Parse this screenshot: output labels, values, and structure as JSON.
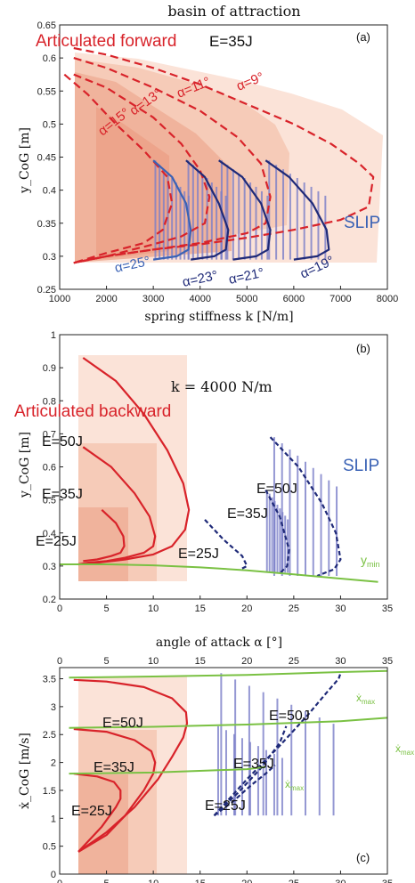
{
  "chart_data": [
    {
      "panel": "a",
      "type": "line",
      "title": "basin of attraction",
      "panel_label": "(a)",
      "xlabel": "spring stiffness k [N/m]",
      "ylabel": "y_CoG [m]",
      "xlim": [
        1000,
        8000
      ],
      "ylim": [
        0.25,
        0.65
      ],
      "xticks": [
        "1000",
        "2000",
        "3000",
        "4000",
        "5000",
        "6000",
        "7000",
        "8000"
      ],
      "yticks": [
        "0.25",
        "0.3",
        "0.35",
        "0.4",
        "0.45",
        "0.5",
        "0.55",
        "0.6",
        "0.65"
      ],
      "annotations": {
        "model_left": "Articulated forward",
        "energy": "E=35J",
        "model_right": "SLIP"
      },
      "colors": {
        "articulated": "#d8232a",
        "articulated_fill": "#f7c9b8",
        "slip_dark": "#1f2a78",
        "slip_light": "#3a62b5",
        "slip_hatch": "#7b7fc9"
      },
      "series": [
        {
          "name": "α=9°",
          "group": "articulated",
          "x": [
            1300,
            2000,
            3000,
            4000,
            5000,
            6000,
            6800,
            7400,
            7700,
            7600,
            7000,
            6000,
            5000,
            4000,
            3000,
            2000,
            1300
          ],
          "y": [
            0.615,
            0.605,
            0.585,
            0.56,
            0.53,
            0.5,
            0.47,
            0.44,
            0.42,
            0.375,
            0.355,
            0.34,
            0.328,
            0.318,
            0.31,
            0.3,
            0.29
          ]
        },
        {
          "name": "α=11°",
          "group": "articulated",
          "x": [
            1300,
            2000,
            3000,
            4000,
            4800,
            5300,
            5500,
            5400,
            5000,
            4000,
            3000,
            2000,
            1300
          ],
          "y": [
            0.6,
            0.585,
            0.555,
            0.52,
            0.48,
            0.44,
            0.39,
            0.35,
            0.335,
            0.32,
            0.31,
            0.3,
            0.29
          ]
        },
        {
          "name": "α=13°",
          "group": "articulated",
          "x": [
            1300,
            2000,
            3000,
            3600,
            4000,
            4200,
            4100,
            3600,
            3000,
            2000,
            1300
          ],
          "y": [
            0.575,
            0.555,
            0.51,
            0.47,
            0.43,
            0.39,
            0.35,
            0.33,
            0.318,
            0.3,
            0.29
          ]
        },
        {
          "name": "α=15°",
          "group": "articulated",
          "x": [
            1100,
            1600,
            2200,
            2800,
            3300,
            3400,
            3200,
            2800,
            2000,
            1300
          ],
          "y": [
            0.575,
            0.545,
            0.5,
            0.46,
            0.42,
            0.38,
            0.34,
            0.32,
            0.305,
            0.29
          ]
        },
        {
          "name": "α=25°",
          "group": "slip",
          "x": [
            3000,
            3400,
            3700,
            3800,
            3750,
            3500,
            3000
          ],
          "y": [
            0.445,
            0.42,
            0.38,
            0.34,
            0.31,
            0.3,
            0.295
          ]
        },
        {
          "name": "α=23°",
          "group": "slip",
          "x": [
            3700,
            4100,
            4400,
            4600,
            4550,
            4300,
            3800
          ],
          "y": [
            0.445,
            0.42,
            0.38,
            0.34,
            0.31,
            0.3,
            0.295
          ]
        },
        {
          "name": "α=21°",
          "group": "slip",
          "x": [
            4400,
            4900,
            5300,
            5500,
            5450,
            5200,
            4700
          ],
          "y": [
            0.445,
            0.42,
            0.38,
            0.34,
            0.31,
            0.3,
            0.295
          ]
        },
        {
          "name": "α=19°",
          "group": "slip",
          "x": [
            5400,
            5900,
            6400,
            6700,
            6750,
            6500,
            6000
          ],
          "y": [
            0.445,
            0.42,
            0.38,
            0.34,
            0.31,
            0.3,
            0.295
          ]
        }
      ]
    },
    {
      "panel": "b",
      "type": "line",
      "panel_label": "(b)",
      "xlabel": "angle of attack α [°]",
      "ylabel": "y_CoG [m]",
      "xlim": [
        0,
        35
      ],
      "ylim": [
        0.2,
        1.0
      ],
      "xticks": [
        "0",
        "5",
        "10",
        "15",
        "20",
        "25",
        "30",
        "35"
      ],
      "yticks": [
        "0.2",
        "0.3",
        "0.4",
        "0.5",
        "0.6",
        "0.7",
        "0.8",
        "0.9",
        "1"
      ],
      "annotations": {
        "condition": "k = 4000 N/m",
        "model_left": "Articulated backward",
        "model_right": "SLIP",
        "ymin_label": "y",
        "ymin_sub": "min"
      },
      "series": [
        {
          "name": "E=50J",
          "group": "articulated",
          "x": [
            2.5,
            6,
            9,
            11.5,
            13.2,
            13.8,
            13.4,
            12,
            10,
            7,
            4,
            2
          ],
          "y": [
            0.93,
            0.86,
            0.76,
            0.65,
            0.55,
            0.47,
            0.41,
            0.36,
            0.335,
            0.32,
            0.31,
            0.305
          ]
        },
        {
          "name": "E=35J",
          "group": "articulated",
          "x": [
            2.5,
            5.5,
            8,
            9.6,
            10.2,
            10,
            9,
            7,
            5,
            3,
            2
          ],
          "y": [
            0.66,
            0.6,
            0.52,
            0.45,
            0.39,
            0.36,
            0.34,
            0.325,
            0.315,
            0.31,
            0.305
          ]
        },
        {
          "name": "E=25J",
          "group": "articulated",
          "x": [
            4.5,
            6,
            6.8,
            6.9,
            6.5,
            5.5,
            4,
            2.5
          ],
          "y": [
            0.47,
            0.43,
            0.39,
            0.36,
            0.34,
            0.33,
            0.32,
            0.315
          ]
        },
        {
          "name": "E=25J",
          "group": "slip",
          "x": [
            15.5,
            17.5,
            19.5,
            20,
            19.3
          ],
          "y": [
            0.44,
            0.38,
            0.33,
            0.3,
            0.29
          ]
        },
        {
          "name": "E=35J",
          "group": "slip",
          "x": [
            22,
            23.5,
            24.5,
            24.3,
            23.6
          ],
          "y": [
            0.53,
            0.45,
            0.35,
            0.3,
            0.28
          ]
        },
        {
          "name": "E=50J",
          "group": "slip",
          "x": [
            22.5,
            25.5,
            28,
            29.5,
            30,
            29.3,
            27.5
          ],
          "y": [
            0.69,
            0.6,
            0.49,
            0.4,
            0.32,
            0.29,
            0.27
          ]
        },
        {
          "name": "y_min",
          "group": "ymin",
          "x": [
            0,
            5,
            10,
            15,
            20,
            25,
            30,
            34
          ],
          "y": [
            0.305,
            0.305,
            0.302,
            0.296,
            0.287,
            0.275,
            0.262,
            0.252
          ]
        }
      ]
    },
    {
      "panel": "c",
      "type": "line",
      "panel_label": "(c)",
      "xlabel": "",
      "ylabel": "ẋ_CoG [m/s]",
      "xlim": [
        0,
        35
      ],
      "ylim": [
        0,
        3.7
      ],
      "xticks": [
        "0",
        "5",
        "10",
        "15",
        "20",
        "25",
        "30",
        "35"
      ],
      "yticks": [
        "0",
        "0.5",
        "1",
        "1.5",
        "2",
        "2.5",
        "3",
        "3.5"
      ],
      "annotations": {
        "xmax_label": "ẋ",
        "xmax_sub": "max"
      },
      "series": [
        {
          "name": "E=50J",
          "group": "articulated",
          "x": [
            1.5,
            5,
            9,
            12,
            13.5,
            13.6,
            13.2,
            12,
            10.5,
            8,
            5,
            2
          ],
          "y": [
            3.48,
            3.45,
            3.35,
            3.15,
            2.9,
            2.7,
            2.45,
            2.1,
            1.7,
            1.2,
            0.75,
            0.4
          ]
        },
        {
          "name": "E=35J",
          "group": "articulated",
          "x": [
            1.5,
            5,
            8,
            9.8,
            10.2,
            10,
            9,
            7,
            5,
            2
          ],
          "y": [
            2.6,
            2.55,
            2.4,
            2.2,
            2.0,
            1.8,
            1.5,
            1.05,
            0.7,
            0.4
          ]
        },
        {
          "name": "E=25J",
          "group": "articulated",
          "x": [
            1.5,
            4,
            5.8,
            6.5,
            6.5,
            6,
            4.5,
            2
          ],
          "y": [
            1.8,
            1.75,
            1.65,
            1.5,
            1.35,
            1.2,
            0.85,
            0.4
          ]
        },
        {
          "name": "E=25J",
          "group": "slip",
          "x": [
            16.5,
            18.5,
            20.5,
            22,
            23
          ],
          "y": [
            1.05,
            1.3,
            1.6,
            1.8,
            1.95
          ]
        },
        {
          "name": "E=35J",
          "group": "slip",
          "x": [
            16.5,
            19,
            21.5,
            23.5,
            24.2
          ],
          "y": [
            1.05,
            1.45,
            1.9,
            2.35,
            2.65
          ]
        },
        {
          "name": "E=50J",
          "group": "slip",
          "x": [
            16.5,
            20,
            23.5,
            26.5,
            28.5,
            29.8,
            30
          ],
          "y": [
            1.05,
            1.7,
            2.3,
            2.85,
            3.25,
            3.5,
            3.6
          ]
        },
        {
          "name": "ẋ_max (50J)",
          "group": "xmax",
          "x": [
            1,
            10,
            20,
            30,
            35
          ],
          "y": [
            3.52,
            3.54,
            3.57,
            3.62,
            3.64
          ]
        },
        {
          "name": "ẋ_max (35J)",
          "group": "xmax",
          "x": [
            1,
            10,
            20,
            30,
            35
          ],
          "y": [
            2.62,
            2.64,
            2.68,
            2.74,
            2.8
          ]
        },
        {
          "name": "ẋ_max (25J)",
          "group": "xmax",
          "x": [
            1,
            10,
            20,
            22
          ],
          "y": [
            1.8,
            1.82,
            1.88,
            1.92
          ]
        }
      ],
      "labels": [
        "E=50J",
        "E=35J",
        "E=25J",
        "E=50J",
        "E=35J",
        "E=25J"
      ]
    }
  ]
}
